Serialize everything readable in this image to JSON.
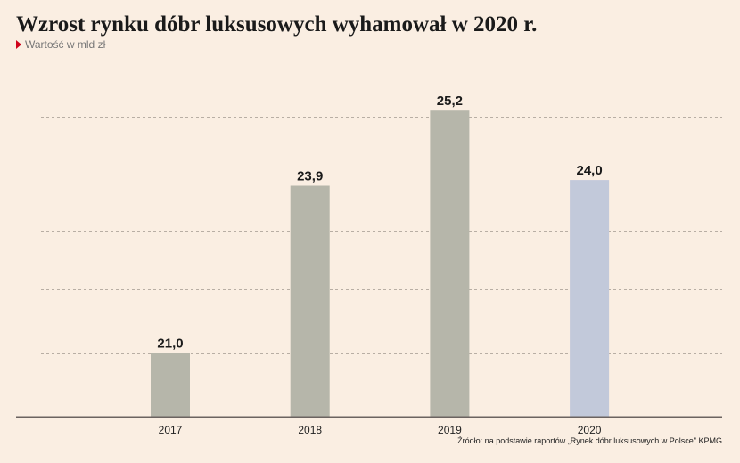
{
  "title": "Wzrost rynku dóbr luksusowych wyhamował w 2020 r.",
  "subtitle": "Wartość w mld zł",
  "source": "Źródło: na podstawie raportów „Rynek dóbr luksusowych w Polsce\" KPMG",
  "colors": {
    "background": "#faeee2",
    "bar": "#b6b6aa",
    "bar_highlight": "#c2c9da",
    "grid": "#b8aea4",
    "axis": "#6b6360",
    "marker": "#d0021b"
  },
  "chart_data": {
    "type": "bar",
    "title": "Wzrost rynku dóbr luksusowych wyhamował w 2020 r.",
    "subtitle": "Wartość w mld zł",
    "categories": [
      "2017",
      "2018",
      "2019",
      "2020"
    ],
    "values": [
      21.0,
      23.9,
      25.2,
      24.0
    ],
    "value_labels": [
      "21,0",
      "23,9",
      "25,2",
      "24,0"
    ],
    "highlight_index": 3,
    "xlabel": "",
    "ylabel": "",
    "ylim": [
      19.9,
      25.82
    ],
    "y_gridlines": [
      21.0,
      22.1,
      23.1,
      24.1,
      25.1
    ],
    "grid": true,
    "y_tick_labels_shown": false,
    "legend": "none"
  }
}
